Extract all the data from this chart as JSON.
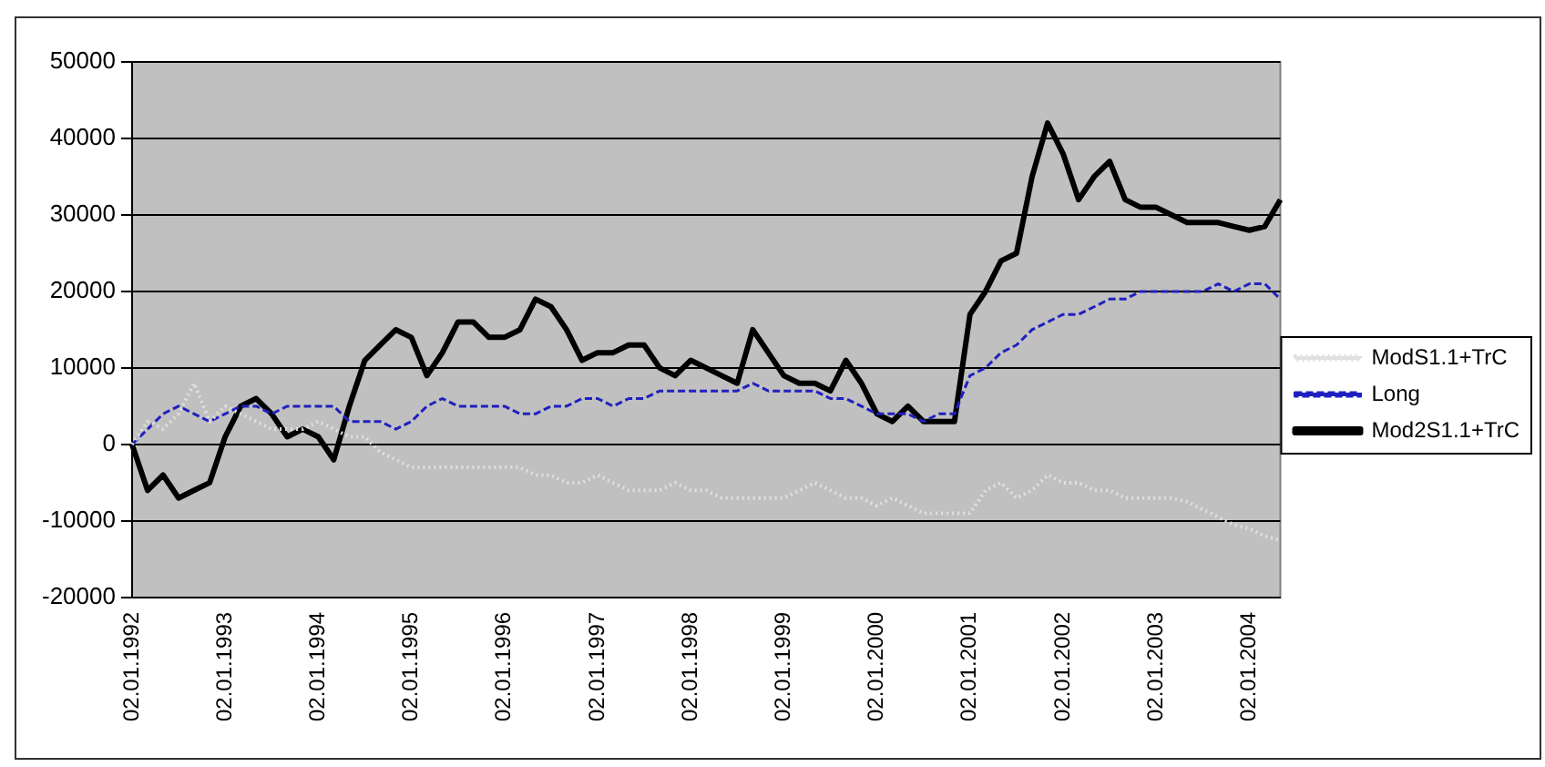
{
  "chart_data": {
    "type": "line",
    "categories": [
      "02.01.1992",
      null,
      null,
      null,
      null,
      null,
      "02.01.1993",
      null,
      null,
      null,
      null,
      null,
      "02.01.1994",
      null,
      null,
      null,
      null,
      null,
      "02.01.1995",
      null,
      null,
      null,
      null,
      null,
      "02.01.1996",
      null,
      null,
      null,
      null,
      null,
      "02.01.1997",
      null,
      null,
      null,
      null,
      null,
      "02.01.1998",
      null,
      null,
      null,
      null,
      null,
      "02.01.1999",
      null,
      null,
      null,
      null,
      null,
      "02.01.2000",
      null,
      null,
      null,
      null,
      null,
      "02.01.2001",
      null,
      null,
      null,
      null,
      null,
      "02.01.2002",
      null,
      null,
      null,
      null,
      null,
      "02.01.2003",
      null,
      null,
      null,
      null,
      null,
      "02.01.2004",
      null,
      null
    ],
    "series": [
      {
        "name": "ModS1.1+TrC",
        "color": "#e0e0e0",
        "line_style": "dotted",
        "values": [
          0,
          3000,
          2000,
          4000,
          8000,
          3000,
          5000,
          4000,
          3000,
          2000,
          2000,
          2000,
          3000,
          2000,
          1000,
          1000,
          -1000,
          -2000,
          -3000,
          -3000,
          -3000,
          -3000,
          -3000,
          -3000,
          -3000,
          -3000,
          -4000,
          -4000,
          -5000,
          -5000,
          -4000,
          -5000,
          -6000,
          -6000,
          -6000,
          -5000,
          -6000,
          -6000,
          -7000,
          -7000,
          -7000,
          -7000,
          -7000,
          -6000,
          -5000,
          -6000,
          -7000,
          -7000,
          -8000,
          -7000,
          -8000,
          -9000,
          -9000,
          -9000,
          -9000,
          -6000,
          -5000,
          -7000,
          -6000,
          -4000,
          -5000,
          -5000,
          -6000,
          -6000,
          -7000,
          -7000,
          -7000,
          -7000,
          -7500,
          -8500,
          -9500,
          -10500,
          -11000,
          -12000,
          -12500
        ]
      },
      {
        "name": "Long",
        "color": "#2020c0",
        "line_style": "dashed",
        "values": [
          0,
          2000,
          4000,
          5000,
          4000,
          3000,
          4000,
          5000,
          5000,
          4000,
          5000,
          5000,
          5000,
          5000,
          3000,
          3000,
          3000,
          2000,
          3000,
          5000,
          6000,
          5000,
          5000,
          5000,
          5000,
          4000,
          4000,
          5000,
          5000,
          6000,
          6000,
          5000,
          6000,
          6000,
          7000,
          7000,
          7000,
          7000,
          7000,
          7000,
          8000,
          7000,
          7000,
          7000,
          7000,
          6000,
          6000,
          5000,
          4000,
          4000,
          4000,
          3000,
          4000,
          4000,
          9000,
          10000,
          12000,
          13000,
          15000,
          16000,
          17000,
          17000,
          18000,
          19000,
          19000,
          20000,
          20000,
          20000,
          20000,
          20000,
          21000,
          20000,
          21000,
          21000,
          19000
        ]
      },
      {
        "name": "Mod2S1.1+TrC",
        "color": "#000000",
        "line_style": "solid",
        "values": [
          0,
          -6000,
          -4000,
          -7000,
          -6000,
          -5000,
          1000,
          5000,
          6000,
          4000,
          1000,
          2000,
          1000,
          -2000,
          5000,
          11000,
          13000,
          15000,
          14000,
          9000,
          12000,
          16000,
          16000,
          14000,
          14000,
          15000,
          19000,
          18000,
          15000,
          11000,
          12000,
          12000,
          13000,
          13000,
          10000,
          9000,
          11000,
          10000,
          9000,
          8000,
          15000,
          12000,
          9000,
          8000,
          8000,
          7000,
          11000,
          8000,
          4000,
          3000,
          5000,
          3000,
          3000,
          3000,
          17000,
          20000,
          24000,
          25000,
          35000,
          42000,
          38000,
          32000,
          35000,
          37000,
          32000,
          31000,
          31000,
          30000,
          29000,
          29000,
          29000,
          28500,
          28000,
          28500,
          32000
        ]
      }
    ],
    "ylim": [
      -20000,
      50000
    ],
    "yticks": [
      -20000,
      -10000,
      0,
      10000,
      20000,
      30000,
      40000,
      50000
    ],
    "grid": "y",
    "legend": "right",
    "marker": "none"
  }
}
